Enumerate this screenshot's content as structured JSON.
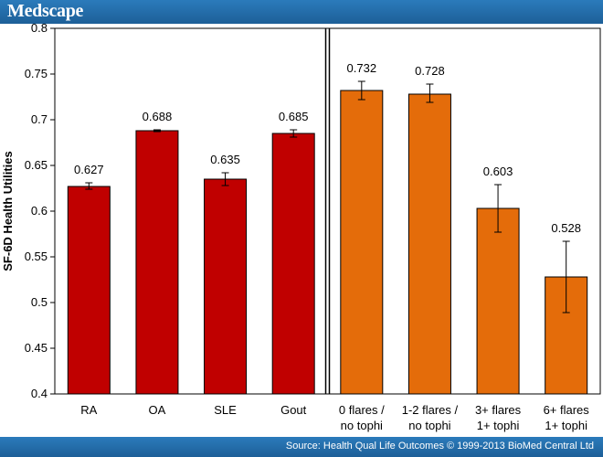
{
  "header": {
    "logo_text": "Medscape"
  },
  "footer": {
    "source_text": "Source: Health Qual Life Outcomes © 1999-2013 BioMed Central Ltd"
  },
  "colors": {
    "brand_bar": "#1f66a3",
    "red_series": "#c00000",
    "orange_series": "#e46c0a"
  },
  "chart_data": {
    "type": "bar",
    "title": "",
    "xlabel": "",
    "ylabel": "SF-6D Health Utilities",
    "ylim": [
      0.4,
      0.8
    ],
    "yticks": [
      "0.4",
      "0.45",
      "0.5",
      "0.55",
      "0.6",
      "0.65",
      "0.7",
      "0.75",
      "0.8"
    ],
    "grid": false,
    "divider_after_category_index": 3,
    "categories": [
      {
        "lines": [
          "RA"
        ],
        "value": 0.627,
        "label": "0.627",
        "err_low": 0.624,
        "err_high": 0.631,
        "group": "disease"
      },
      {
        "lines": [
          "OA"
        ],
        "value": 0.688,
        "label": "0.688",
        "err_low": 0.687,
        "err_high": 0.689,
        "group": "disease"
      },
      {
        "lines": [
          "SLE"
        ],
        "value": 0.635,
        "label": "0.635",
        "err_low": 0.628,
        "err_high": 0.642,
        "group": "disease"
      },
      {
        "lines": [
          "Gout"
        ],
        "value": 0.685,
        "label": "0.685",
        "err_low": 0.681,
        "err_high": 0.689,
        "group": "disease"
      },
      {
        "lines": [
          "0 flares /",
          "no tophi"
        ],
        "value": 0.732,
        "label": "0.732",
        "err_low": 0.722,
        "err_high": 0.742,
        "group": "gout"
      },
      {
        "lines": [
          "1-2 flares /",
          "no tophi"
        ],
        "value": 0.728,
        "label": "0.728",
        "err_low": 0.719,
        "err_high": 0.739,
        "group": "gout"
      },
      {
        "lines": [
          "3+ flares",
          "1+ tophi"
        ],
        "value": 0.603,
        "label": "0.603",
        "err_low": 0.577,
        "err_high": 0.629,
        "group": "gout"
      },
      {
        "lines": [
          "6+ flares",
          "1+ tophi"
        ],
        "value": 0.528,
        "label": "0.528",
        "err_low": 0.489,
        "err_high": 0.567,
        "group": "gout"
      }
    ]
  }
}
